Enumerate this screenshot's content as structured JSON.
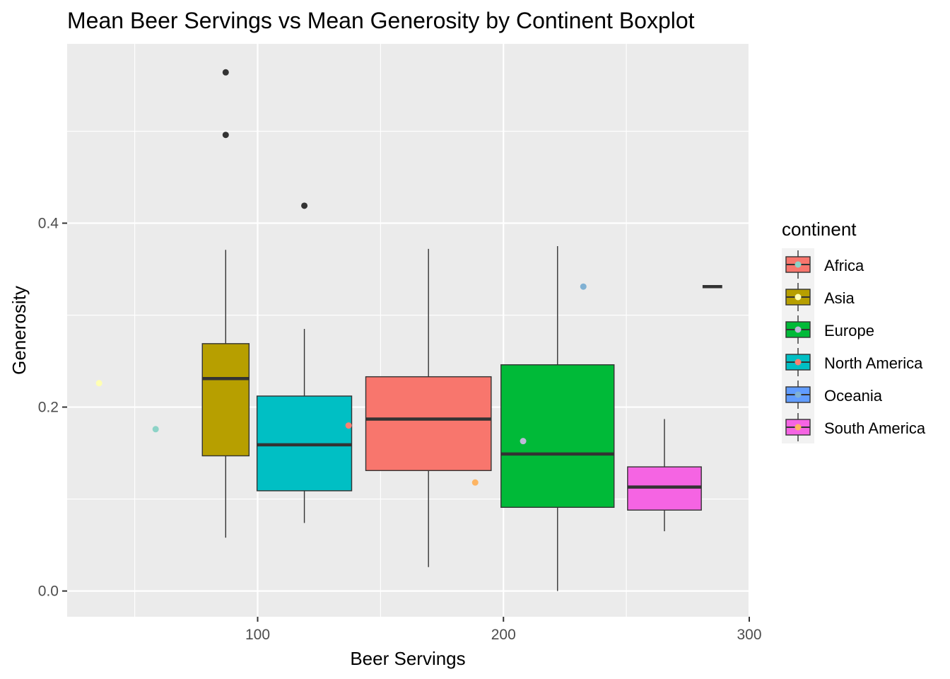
{
  "chart_data": {
    "type": "boxplot",
    "title": "Mean Beer Servings vs Mean Generosity by Continent Boxplot",
    "xlabel": "Beer Servings",
    "ylabel": "Generosity",
    "xlim": [
      22.5,
      300
    ],
    "ylim": [
      -0.028,
      0.595
    ],
    "x_ticks": [
      100,
      200,
      300
    ],
    "x_minor": [
      50,
      150,
      250
    ],
    "y_ticks": [
      0.0,
      0.2,
      0.4
    ],
    "y_tick_labels": [
      "0.0",
      "0.2",
      "0.4"
    ],
    "y_minor": [
      0.1,
      0.3,
      0.5
    ],
    "grid": true,
    "legend": {
      "title": "continent",
      "placement": "right",
      "entries": [
        {
          "name": "Africa",
          "fill": "#F8766D",
          "dot": "#8DD3C7"
        },
        {
          "name": "Asia",
          "fill": "#B79F00",
          "dot": "#FFFFB3"
        },
        {
          "name": "Europe",
          "fill": "#00BA38",
          "dot": "#BEBADA"
        },
        {
          "name": "North America",
          "fill": "#00BFC4",
          "dot": "#FB8072"
        },
        {
          "name": "Oceania",
          "fill": "#619CFF",
          "dot": "#80B1D3"
        },
        {
          "name": "South America",
          "fill": "#F564E3",
          "dot": "#FDB462"
        }
      ]
    },
    "boxes": [
      {
        "continent": "Asia",
        "fill": "#B79F00",
        "x_center": 87,
        "x_width": 19,
        "whisker_low": 0.058,
        "q1": 0.147,
        "median": 0.231,
        "q3": 0.269,
        "whisker_high": 0.371,
        "outliers": [
          0.496,
          0.564
        ]
      },
      {
        "continent": "North America",
        "fill": "#00BFC4",
        "x_center": 119,
        "x_width": 38.5,
        "whisker_low": 0.074,
        "q1": 0.109,
        "median": 0.159,
        "q3": 0.212,
        "whisker_high": 0.285,
        "outliers": [
          0.419
        ]
      },
      {
        "continent": "Africa",
        "fill": "#F8766D",
        "x_center": 169.5,
        "x_width": 51,
        "whisker_low": 0.026,
        "q1": 0.131,
        "median": 0.187,
        "q3": 0.233,
        "whisker_high": 0.372,
        "outliers": []
      },
      {
        "continent": "Europe",
        "fill": "#00BA38",
        "x_center": 222,
        "x_width": 46,
        "whisker_low": 0.0,
        "q1": 0.091,
        "median": 0.149,
        "q3": 0.246,
        "whisker_high": 0.375,
        "outliers": []
      },
      {
        "continent": "South America",
        "fill": "#F564E3",
        "x_center": 265.5,
        "x_width": 30,
        "whisker_low": 0.065,
        "q1": 0.088,
        "median": 0.113,
        "q3": 0.135,
        "whisker_high": 0.187,
        "outliers": []
      },
      {
        "continent": "Oceania",
        "fill": "#619CFF",
        "x_center": 285,
        "x_width": 8,
        "whisker_low": 0.331,
        "q1": 0.331,
        "median": 0.331,
        "q3": 0.331,
        "whisker_high": 0.331,
        "outliers": []
      }
    ],
    "points": [
      {
        "continent": "Asia",
        "x": 35.5,
        "y": 0.226,
        "color": "#FFFFB3"
      },
      {
        "continent": "Africa",
        "x": 58.5,
        "y": 0.176,
        "color": "#8DD3C7"
      },
      {
        "continent": "North America",
        "x": 137,
        "y": 0.18,
        "color": "#FB8072"
      },
      {
        "continent": "South America",
        "x": 188.5,
        "y": 0.118,
        "color": "#FDB462"
      },
      {
        "continent": "Europe",
        "x": 208,
        "y": 0.163,
        "color": "#BEBADA"
      },
      {
        "continent": "Oceania",
        "x": 232.5,
        "y": 0.331,
        "color": "#80B1D3"
      }
    ]
  }
}
